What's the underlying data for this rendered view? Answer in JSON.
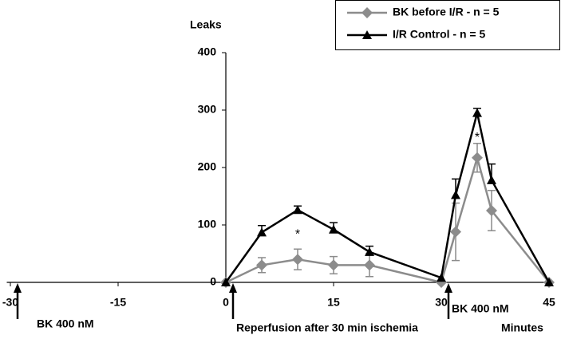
{
  "chart_data": {
    "type": "line",
    "y_label": "Leaks",
    "x_label": "Minutes",
    "xlim": [
      -30.5,
      45.5
    ],
    "xticks": [
      -30,
      -15,
      0,
      15,
      30,
      45
    ],
    "ylim": [
      0,
      400
    ],
    "yticks": [
      0,
      100,
      200,
      300,
      400
    ],
    "legend": "top-right",
    "series": [
      {
        "name": "BK before I/R - n = 5",
        "color": "#8c8c8c",
        "marker": "diamond",
        "x": [
          0,
          5,
          10,
          15,
          20,
          30,
          32,
          35,
          37,
          45
        ],
        "values": [
          0,
          30,
          40,
          30,
          30,
          0,
          88,
          217,
          125,
          0
        ],
        "errors": [
          0,
          13,
          18,
          15,
          20,
          0,
          50,
          25,
          35,
          0
        ]
      },
      {
        "name": "I/R Control - n = 5",
        "color": "#000000",
        "marker": "triangle",
        "x": [
          0,
          5,
          10,
          15,
          20,
          30,
          32,
          35,
          37,
          45
        ],
        "values": [
          0,
          87,
          126,
          92,
          53,
          8,
          152,
          295,
          178,
          0
        ],
        "errors": [
          0,
          12,
          7,
          12,
          10,
          0,
          28,
          8,
          28,
          0
        ]
      }
    ],
    "annotations": [
      {
        "text": "*",
        "x": 10,
        "y": 83
      },
      {
        "text": "*",
        "x": 35,
        "y": 252
      }
    ],
    "arrows": [
      {
        "text": "BK 400 nM",
        "x": -29
      },
      {
        "text": "Reperfusion after 30 min ischemia",
        "x": 1
      },
      {
        "text": "BK 400 nM",
        "x": 31
      }
    ]
  }
}
